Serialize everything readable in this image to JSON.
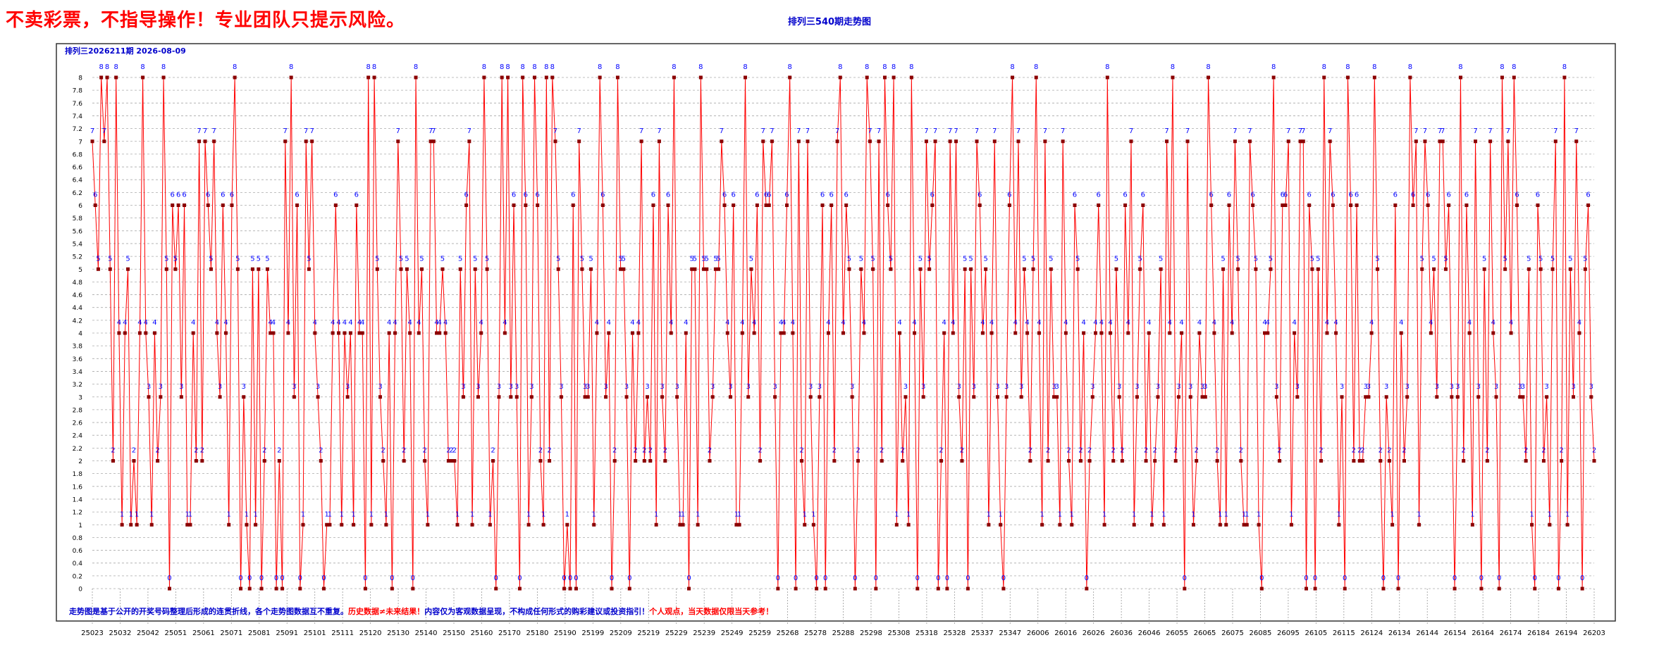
{
  "banner": "不卖彩票，不指导操作！专业团队只提示风险。",
  "chart_title": "排列三540期走势图",
  "chart_data": {
    "type": "line",
    "header_text": "排列三2026211期  2026-08-09",
    "footer": {
      "part1": "走势图是基于公开的开奖号码整理后形成的连贯折线，各个走势图数据互不重复。",
      "part2": "历史数据≠未来结果！",
      "part3": "内容仅为客观数据呈现，不构成任何形式的购彩建议或投资指引！",
      "part4": "个人观点，当天数据仅限当天参考！"
    },
    "ylim": [
      0,
      8
    ],
    "y_ticks": [
      "0",
      "0.2",
      "0.4",
      "0.6",
      "0.8",
      "1",
      "1.2",
      "1.4",
      "1.6",
      "1.8",
      "2",
      "2.2",
      "2.4",
      "2.6",
      "2.8",
      "3",
      "3.2",
      "3.4",
      "3.6",
      "3.8",
      "4",
      "4.2",
      "4.4",
      "4.6",
      "4.8",
      "5",
      "5.2",
      "5.4",
      "5.6",
      "5.8",
      "6",
      "6.2",
      "6.4",
      "6.6",
      "6.8",
      "7",
      "7.2",
      "7.4",
      "7.6",
      "7.8",
      "8"
    ],
    "x_tick_labels": [
      "25023",
      "25032",
      "25042",
      "25051",
      "25061",
      "25071",
      "25081",
      "25091",
      "25101",
      "25111",
      "25120",
      "25130",
      "25140",
      "25150",
      "25160",
      "25170",
      "25180",
      "25190",
      "25199",
      "25209",
      "25219",
      "25229",
      "25239",
      "25249",
      "25259",
      "25268",
      "25278",
      "25288",
      "25298",
      "25308",
      "25318",
      "25328",
      "25337",
      "25347",
      "26006",
      "26016",
      "26026",
      "26036",
      "26046",
      "26055",
      "26065",
      "26075",
      "26085",
      "26095",
      "26105",
      "26115",
      "26124",
      "26134",
      "26144",
      "26154",
      "26164",
      "26174",
      "26184",
      "26194",
      "26203"
    ],
    "series": [
      {
        "color": "#ff0000",
        "marker_color": "#8b0000",
        "label_color": "#0000ff",
        "values": [
          7,
          6,
          5,
          8,
          7,
          8,
          5,
          2,
          8,
          4,
          1,
          4,
          5,
          1,
          2,
          1,
          4,
          8,
          4,
          3,
          1,
          4,
          2,
          3,
          8,
          5,
          0,
          6,
          5,
          6,
          3,
          6,
          1,
          1,
          4,
          2,
          7,
          2,
          7,
          6,
          5,
          7,
          4,
          3,
          6,
          4,
          1,
          6,
          8,
          5,
          0,
          3,
          1,
          0,
          5,
          1,
          5,
          0,
          2,
          5,
          4,
          4,
          0,
          2,
          0,
          7,
          4,
          8,
          3,
          6,
          0,
          1,
          7,
          5,
          7,
          4,
          3,
          2,
          0,
          1,
          1,
          4,
          6,
          4,
          1,
          4,
          3,
          4,
          1,
          6,
          4,
          4,
          0,
          8,
          1,
          8,
          5,
          3,
          2,
          1,
          4,
          0,
          4,
          7,
          5,
          2,
          5,
          4,
          0,
          8,
          4,
          5,
          2,
          1,
          7,
          7,
          4,
          4,
          5,
          4,
          2,
          2,
          2,
          1,
          5,
          3,
          6,
          7,
          1,
          5,
          3,
          4,
          8,
          5,
          1,
          2,
          0,
          3,
          8,
          4,
          8,
          3,
          6,
          3,
          0,
          8,
          6,
          1,
          3,
          8,
          6,
          2,
          1,
          8,
          2,
          8,
          7,
          5,
          3,
          0,
          1,
          0,
          6,
          0,
          7,
          5,
          3,
          3,
          5,
          1,
          4,
          8,
          6,
          3,
          4,
          0,
          2,
          8,
          5,
          5,
          3,
          0,
          4,
          2,
          4,
          7,
          2,
          3,
          2,
          6,
          1,
          7,
          3,
          2,
          6,
          4,
          8,
          3,
          1,
          1,
          4,
          0,
          5,
          5,
          1,
          8,
          5,
          5,
          2,
          3,
          5,
          5,
          7,
          6,
          4,
          3,
          6,
          1,
          1,
          4,
          8,
          3,
          5,
          4,
          6,
          2,
          7,
          6,
          6,
          7,
          3,
          0,
          4,
          4,
          6,
          8,
          4,
          0,
          7,
          2,
          1,
          7,
          3,
          1,
          0,
          3,
          6,
          0,
          4,
          6,
          2,
          7,
          8,
          4,
          6,
          5,
          3,
          0,
          2,
          5,
          4,
          8,
          7,
          5,
          0,
          7,
          2,
          8,
          6,
          5,
          8,
          1,
          4,
          2,
          3,
          1,
          8,
          4,
          0,
          5,
          3,
          7,
          5,
          6,
          7,
          0,
          2,
          4,
          0,
          7,
          4,
          7,
          3,
          2,
          5,
          0,
          5,
          3,
          7,
          6,
          4,
          5,
          1,
          4,
          7,
          3,
          1,
          0,
          3,
          6,
          8,
          4,
          7,
          3,
          5,
          4,
          2,
          5,
          8,
          4,
          1,
          7,
          2,
          5,
          3,
          3,
          1,
          7,
          4,
          2,
          1,
          6,
          5,
          2,
          4,
          0,
          2,
          3,
          4,
          6,
          4,
          1,
          8,
          4,
          2,
          5,
          3,
          2,
          6,
          4,
          7,
          1,
          3,
          5,
          6,
          2,
          4,
          1,
          2,
          3,
          5,
          1,
          7,
          4,
          8,
          2,
          3,
          4,
          0,
          7,
          3,
          1,
          2,
          4,
          3,
          3,
          8,
          6,
          4,
          2,
          1,
          5,
          1,
          6,
          4,
          7,
          5,
          2,
          1,
          1,
          7,
          6,
          5,
          1,
          0,
          4,
          4,
          5,
          8,
          3,
          2,
          6,
          6,
          7,
          1,
          4,
          3,
          7,
          7,
          0,
          6,
          5,
          0,
          5,
          2,
          8,
          4,
          7,
          6,
          4,
          1,
          3,
          0,
          8,
          6,
          2,
          6,
          2,
          2,
          3,
          3,
          4,
          8,
          5,
          2,
          0,
          3,
          2,
          1,
          6,
          0,
          4,
          2,
          3,
          8,
          6,
          7,
          1,
          5,
          7,
          6,
          4,
          5,
          3,
          7,
          7,
          5,
          6,
          3,
          0,
          3,
          8,
          2,
          6,
          4,
          1,
          7,
          3,
          0,
          5,
          2,
          7,
          4,
          3,
          0,
          8,
          5,
          7,
          4,
          8,
          6,
          3,
          3,
          2,
          5,
          1,
          0,
          6,
          5,
          2,
          3,
          1,
          5,
          7,
          0,
          2,
          8,
          1,
          5,
          3,
          7,
          4,
          0,
          5,
          6,
          3,
          2
        ]
      }
    ]
  }
}
